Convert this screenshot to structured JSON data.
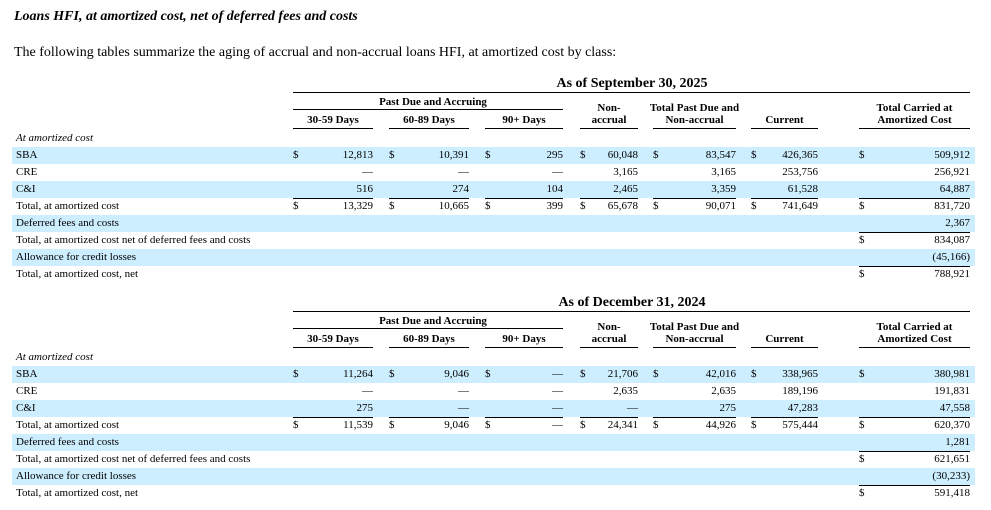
{
  "title": "Loans HFI, at amortized cost, net of deferred fees and costs",
  "intro": "The following tables summarize the aging of accrual and non-accrual loans HFI, at amortized cost by class:",
  "tables": [
    {
      "heading": "As of September 30, 2025",
      "group_header": "Past Due and Accruing",
      "columns": [
        [
          "30-59 Days"
        ],
        [
          "60-89 Days"
        ],
        [
          "90+ Days"
        ],
        [
          "Non-",
          "accrual"
        ],
        [
          "Total Past Due and",
          "Non-accrual"
        ],
        [
          "Current"
        ],
        [
          "Total Carried at",
          "Amortized Cost"
        ]
      ],
      "section_label": "At amortized cost",
      "rows": [
        {
          "label": "SBA",
          "cells": [
            {
              "sign": "$",
              "text": "12,813"
            },
            {
              "sign": "$",
              "text": "10,391"
            },
            {
              "sign": "$",
              "text": "295"
            },
            {
              "sign": "$",
              "text": "60,048"
            },
            {
              "sign": "$",
              "text": "83,547"
            },
            {
              "sign": "$",
              "text": "426,365"
            },
            {
              "sign": "$",
              "text": "509,912"
            }
          ]
        },
        {
          "label": "CRE",
          "cells": [
            {
              "text": "—"
            },
            {
              "text": "—"
            },
            {
              "text": "—"
            },
            {
              "text": "3,165"
            },
            {
              "text": "3,165"
            },
            {
              "text": "253,756"
            },
            {
              "text": "256,921"
            }
          ]
        },
        {
          "label": "C&I",
          "cells": [
            {
              "text": "516"
            },
            {
              "text": "274"
            },
            {
              "text": "104"
            },
            {
              "text": "2,465"
            },
            {
              "text": "3,359"
            },
            {
              "text": "61,528"
            },
            {
              "text": "64,887"
            }
          ]
        },
        {
          "label": "Total, at amortized cost",
          "cells": [
            {
              "sign": "$",
              "text": "13,329"
            },
            {
              "sign": "$",
              "text": "10,665"
            },
            {
              "sign": "$",
              "text": "399"
            },
            {
              "sign": "$",
              "text": "65,678"
            },
            {
              "sign": "$",
              "text": "90,071"
            },
            {
              "sign": "$",
              "text": "741,649"
            },
            {
              "sign": "$",
              "text": "831,720"
            }
          ]
        },
        {
          "label": "Deferred fees and costs",
          "cells": [
            null,
            null,
            null,
            null,
            null,
            null,
            {
              "text": "2,367"
            }
          ]
        },
        {
          "label": "Total, at amortized cost net of deferred fees and costs",
          "cells": [
            null,
            null,
            null,
            null,
            null,
            null,
            {
              "sign": "$",
              "text": "834,087"
            }
          ]
        },
        {
          "label": "Allowance for credit losses",
          "cells": [
            null,
            null,
            null,
            null,
            null,
            null,
            {
              "text": "(45,166)"
            }
          ]
        },
        {
          "label": "Total, at amortized cost, net",
          "cells": [
            null,
            null,
            null,
            null,
            null,
            null,
            {
              "sign": "$",
              "text": "788,921"
            }
          ]
        }
      ]
    },
    {
      "heading": "As of December 31, 2024",
      "group_header": "Past Due and Accruing",
      "columns": [
        [
          "30-59 Days"
        ],
        [
          "60-89 Days"
        ],
        [
          "90+ Days"
        ],
        [
          "Non-",
          "accrual"
        ],
        [
          "Total Past Due and",
          "Non-accrual"
        ],
        [
          "Current"
        ],
        [
          "Total Carried at",
          "Amortized Cost"
        ]
      ],
      "section_label": "At amortized cost",
      "rows": [
        {
          "label": "SBA",
          "cells": [
            {
              "sign": "$",
              "text": "11,264"
            },
            {
              "sign": "$",
              "text": "9,046"
            },
            {
              "sign": "$",
              "text": "—"
            },
            {
              "sign": "$",
              "text": "21,706"
            },
            {
              "sign": "$",
              "text": "42,016"
            },
            {
              "sign": "$",
              "text": "338,965"
            },
            {
              "sign": "$",
              "text": "380,981"
            }
          ]
        },
        {
          "label": "CRE",
          "cells": [
            {
              "text": "—"
            },
            {
              "text": "—"
            },
            {
              "text": "—"
            },
            {
              "text": "2,635"
            },
            {
              "text": "2,635"
            },
            {
              "text": "189,196"
            },
            {
              "text": "191,831"
            }
          ]
        },
        {
          "label": "C&I",
          "cells": [
            {
              "text": "275"
            },
            {
              "text": "—"
            },
            {
              "text": "—"
            },
            {
              "text": "—"
            },
            {
              "text": "275"
            },
            {
              "text": "47,283"
            },
            {
              "text": "47,558"
            }
          ]
        },
        {
          "label": "Total, at amortized cost",
          "cells": [
            {
              "sign": "$",
              "text": "11,539"
            },
            {
              "sign": "$",
              "text": "9,046"
            },
            {
              "sign": "$",
              "text": "—"
            },
            {
              "sign": "$",
              "text": "24,341"
            },
            {
              "sign": "$",
              "text": "44,926"
            },
            {
              "sign": "$",
              "text": "575,444"
            },
            {
              "sign": "$",
              "text": "620,370"
            }
          ]
        },
        {
          "label": "Deferred fees and costs",
          "cells": [
            null,
            null,
            null,
            null,
            null,
            null,
            {
              "text": "1,281"
            }
          ]
        },
        {
          "label": "Total, at amortized cost net of deferred fees and costs",
          "cells": [
            null,
            null,
            null,
            null,
            null,
            null,
            {
              "sign": "$",
              "text": "621,651"
            }
          ]
        },
        {
          "label": "Allowance for credit losses",
          "cells": [
            null,
            null,
            null,
            null,
            null,
            null,
            {
              "text": "(30,233)"
            }
          ]
        },
        {
          "label": "Total, at amortized cost, net",
          "cells": [
            null,
            null,
            null,
            null,
            null,
            null,
            {
              "sign": "$",
              "text": "591,418"
            }
          ]
        }
      ]
    }
  ]
}
